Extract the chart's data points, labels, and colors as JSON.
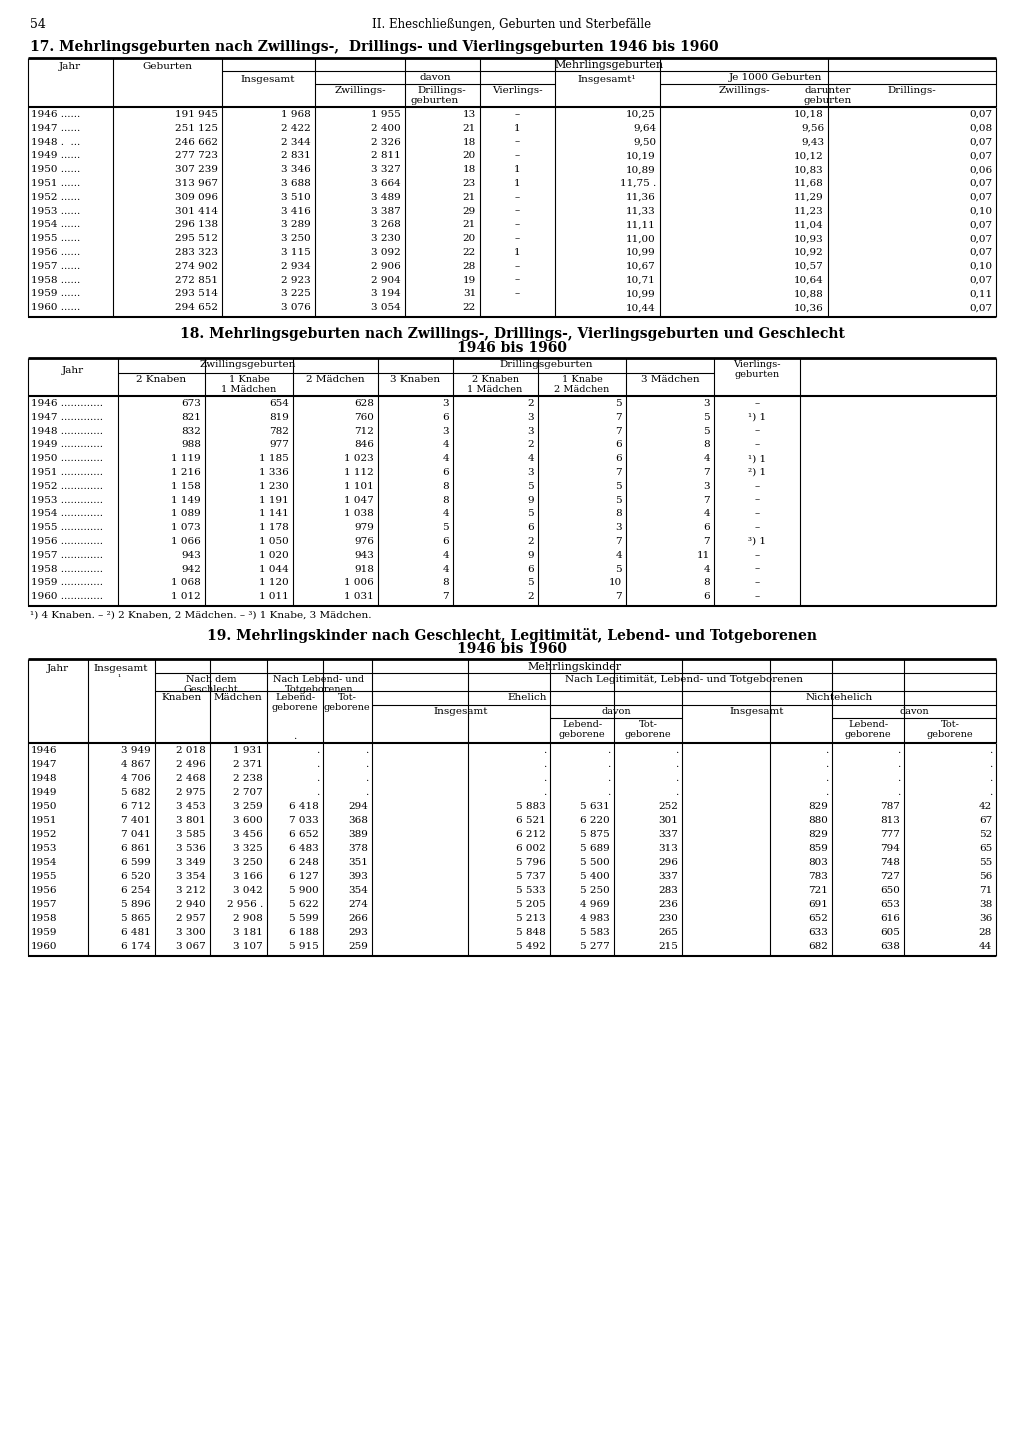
{
  "page_number": "54",
  "page_header": "II. Eheschließungen, Geburten und Sterbefälle",
  "table17_title": "17. Mehrlingsgeburten nach Zwillings-,  Drillings- und Vierlingsgeburten 1946 bis 1960",
  "table18_title_line1": "18. Mehrlingsgeburten nach Zwillings-, Drillings-, Vierlingsgeburten und Geschlecht",
  "table18_title_line2": "1946 bis 1960",
  "table19_title_line1": "19. Mehrlingskinder nach Geschlecht, Legitimität, Lebend- und Totgeborenen",
  "table19_title_line2": "1946 bis 1960",
  "table17_data": [
    [
      "1946 ......",
      "191 945",
      "1 968",
      "1 955",
      "13",
      "–",
      "10,25",
      "10,18",
      "0,07"
    ],
    [
      "1947 ......",
      "251 125",
      "2 422",
      "2 400",
      "21",
      "1",
      "9,64",
      "9,56",
      "0,08"
    ],
    [
      "1948 .  ...",
      "246 662",
      "2 344",
      "2 326",
      "18",
      "–",
      "9,50",
      "9,43",
      "0,07"
    ],
    [
      "1949 ......",
      "277 723",
      "2 831",
      "2 811",
      "20",
      "–",
      "10,19",
      "10,12",
      "0,07"
    ],
    [
      "1950 ......",
      "307 239",
      "3 346",
      "3 327",
      "18",
      "1",
      "10,89",
      "10,83",
      "0,06"
    ],
    [
      "1951 ......",
      "313 967",
      "3 688",
      "3 664",
      "23",
      "1",
      "11,75 .",
      "11,68",
      "0,07"
    ],
    [
      "1952 ......",
      "309 096",
      "3 510",
      "3 489",
      "21",
      "–",
      "11,36",
      "11,29",
      "0,07"
    ],
    [
      "1953 ......",
      "301 414",
      "3 416",
      "3 387",
      "29",
      "–",
      "11,33",
      "11,23",
      "0,10"
    ],
    [
      "1954 ......",
      "296 138",
      "3 289",
      "3 268",
      "21",
      "–",
      "11,11",
      "11,04",
      "0,07"
    ],
    [
      "1955 ......",
      "295 512",
      "3 250",
      "3 230",
      "20",
      "–",
      "11,00",
      "10,93",
      "0,07"
    ],
    [
      "1956 ......",
      "283 323",
      "3 115",
      "3 092",
      "22",
      "1",
      "10,99",
      "10,92",
      "0,07"
    ],
    [
      "1957 ......",
      "274 902",
      "2 934",
      "2 906",
      "28",
      "–",
      "10,67",
      "10,57",
      "0,10"
    ],
    [
      "1958 ......",
      "272 851",
      "2 923",
      "2 904",
      "19",
      "–",
      "10,71",
      "10,64",
      "0,07"
    ],
    [
      "1959 ......",
      "293 514",
      "3 225",
      "3 194",
      "31",
      "–",
      "10,99",
      "10,88",
      "0,11"
    ],
    [
      "1960 ......",
      "294 652",
      "3 076",
      "3 054",
      "22",
      "",
      "10,44",
      "10,36",
      "0,07"
    ]
  ],
  "table18_data": [
    [
      "1946",
      "673",
      "654",
      "628",
      "3",
      "2",
      "5",
      "3",
      "–"
    ],
    [
      "1947",
      "821",
      "819",
      "760",
      "6",
      "3",
      "7",
      "5",
      "¹) 1"
    ],
    [
      "1948",
      "832",
      "782",
      "712",
      "3",
      "3",
      "7",
      "5",
      "–"
    ],
    [
      "1949",
      "988",
      "977",
      "846",
      "4",
      "2",
      "6",
      "8",
      "–"
    ],
    [
      "1950",
      "1 119",
      "1 185",
      "1 023",
      "4",
      "4",
      "6",
      "4",
      "¹) 1"
    ],
    [
      "1951",
      "1 216",
      "1 336",
      "1 112",
      "6",
      "3",
      "7",
      "7",
      "²) 1"
    ],
    [
      "1952",
      "1 158",
      "1 230",
      "1 101",
      "8",
      "5",
      "5",
      "3",
      "–"
    ],
    [
      "1953",
      "1 149",
      "1 191",
      "1 047",
      "8",
      "9",
      "5",
      "7",
      "–"
    ],
    [
      "1954",
      "1 089",
      "1 141",
      "1 038",
      "4",
      "5",
      "8",
      "4",
      "–"
    ],
    [
      "1955",
      "1 073",
      "1 178",
      "979",
      "5",
      "6",
      "3",
      "6",
      "–"
    ],
    [
      "1956",
      "1 066",
      "1 050",
      "976",
      "6",
      "2",
      "7",
      "7",
      "³) 1"
    ],
    [
      "1957",
      "943",
      "1 020",
      "943",
      "4",
      "9",
      "4",
      "11",
      "–"
    ],
    [
      "1958",
      "942",
      "1 044",
      "918",
      "4",
      "6",
      "5",
      "4",
      "–"
    ],
    [
      "1959",
      "1 068",
      "1 120",
      "1 006",
      "8",
      "5",
      "10",
      "8",
      "–"
    ],
    [
      "1960",
      "1 012",
      "1 011",
      "1 031",
      "7",
      "2",
      "7",
      "6",
      "–"
    ]
  ],
  "table18_footnote": "¹) 4 Knaben. – ²) 2 Knaben, 2 Mädchen. – ³) 1 Knabe, 3 Mädchen.",
  "table19_data": [
    [
      "1946",
      "3 949",
      "2 018",
      "1 931",
      ".",
      ".",
      ".",
      ".",
      ".",
      ".",
      ".",
      "."
    ],
    [
      "1947",
      "4 867",
      "2 496",
      "2 371",
      ".",
      ".",
      ".",
      ".",
      ".",
      ".",
      ".",
      "."
    ],
    [
      "1948",
      "4 706",
      "2 468",
      "2 238",
      ".",
      ".",
      ".",
      ".",
      ".",
      ".",
      ".",
      "."
    ],
    [
      "1949",
      "5 682",
      "2 975",
      "2 707",
      ".",
      ".",
      ".",
      ".",
      ".",
      ".",
      ".",
      "."
    ],
    [
      "1950",
      "6 712",
      "3 453",
      "3 259",
      "6 418",
      "294",
      "5 883",
      "5 631",
      "252",
      "829",
      "787",
      "42"
    ],
    [
      "1951",
      "7 401",
      "3 801",
      "3 600",
      "7 033",
      "368",
      "6 521",
      "6 220",
      "301",
      "880",
      "813",
      "67"
    ],
    [
      "1952",
      "7 041",
      "3 585",
      "3 456",
      "6 652",
      "389",
      "6 212",
      "5 875",
      "337",
      "829",
      "777",
      "52"
    ],
    [
      "1953",
      "6 861",
      "3 536",
      "3 325",
      "6 483",
      "378",
      "6 002",
      "5 689",
      "313",
      "859",
      "794",
      "65"
    ],
    [
      "1954",
      "6 599",
      "3 349",
      "3 250",
      "6 248",
      "351",
      "5 796",
      "5 500",
      "296",
      "803",
      "748",
      "55"
    ],
    [
      "1955",
      "6 520",
      "3 354",
      "3 166",
      "6 127",
      "393",
      "5 737",
      "5 400",
      "337",
      "783",
      "727",
      "56"
    ],
    [
      "1956",
      "6 254",
      "3 212",
      "3 042",
      "5 900",
      "354",
      "5 533",
      "5 250",
      "283",
      "721",
      "650",
      "71"
    ],
    [
      "1957",
      "5 896",
      "2 940",
      "2 956 .",
      "5 622",
      "274",
      "5 205",
      "4 969",
      "236",
      "691",
      "653",
      "38"
    ],
    [
      "1958",
      "5 865",
      "2 957",
      "2 908",
      "5 599",
      "266",
      "5 213",
      "4 983",
      "230",
      "652",
      "616",
      "36"
    ],
    [
      "1959",
      "6 481",
      "3 300",
      "3 181",
      "6 188",
      "293",
      "5 848",
      "5 583",
      "265",
      "633",
      "605",
      "28"
    ],
    [
      "1960",
      "6 174",
      "3 067",
      "3 107",
      "5 915",
      "259",
      "5 492",
      "5 277",
      "215",
      "682",
      "638",
      "44"
    ]
  ]
}
